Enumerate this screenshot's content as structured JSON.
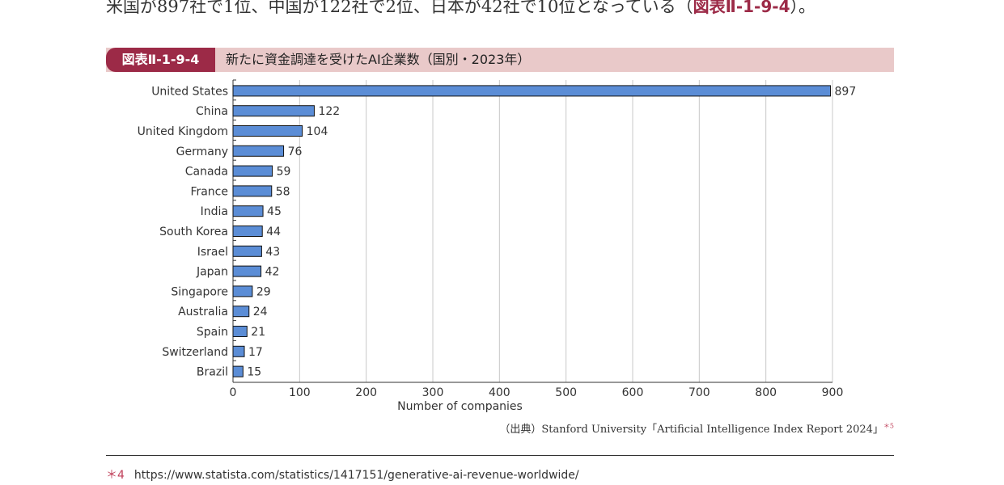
{
  "intro_text": "米国が897社で1位、中国が122社で2位、日本が42社で10位となっている（",
  "intro_ref": "図表Ⅱ-1-9-4",
  "intro_end": "）。",
  "figure": {
    "label": "図表Ⅱ-1-9-4",
    "title": "新たに資金調達を受けたAI企業数（国別・2023年）"
  },
  "colors": {
    "bar": "#5b8dd6",
    "accent": "#9c2a47",
    "header_bg": "#e9c9c9"
  },
  "chart_data": {
    "type": "bar",
    "orientation": "horizontal",
    "categories": [
      "United States",
      "China",
      "United Kingdom",
      "Germany",
      "Canada",
      "France",
      "India",
      "South Korea",
      "Israel",
      "Japan",
      "Singapore",
      "Australia",
      "Spain",
      "Switzerland",
      "Brazil"
    ],
    "values": [
      897,
      122,
      104,
      76,
      59,
      58,
      45,
      44,
      43,
      42,
      29,
      24,
      21,
      17,
      15
    ],
    "xlabel": "Number of companies",
    "ylabel": "",
    "xlim": [
      0,
      900
    ],
    "xticks": [
      "0",
      "100",
      "200",
      "300",
      "400",
      "500",
      "600",
      "700",
      "800",
      "900"
    ],
    "grid": true
  },
  "source": {
    "text": "（出典）Stanford University「Artificial Intelligence Index Report 2024」",
    "note": "＊5"
  },
  "footnote": {
    "mark": "＊4",
    "url": "https://www.statista.com/statistics/1417151/generative-ai-revenue-worldwide/"
  }
}
